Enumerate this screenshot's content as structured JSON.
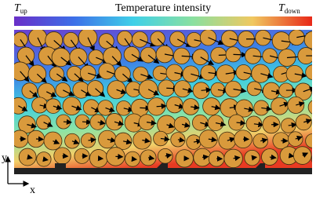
{
  "colorbar": {
    "left_label": {
      "symbol": "T",
      "subscript": "up"
    },
    "title": "Temperature intensity",
    "right_label": {
      "symbol": "T",
      "subscript": "down"
    }
  },
  "axes": {
    "y_label": "y",
    "x_label": "x"
  }
}
